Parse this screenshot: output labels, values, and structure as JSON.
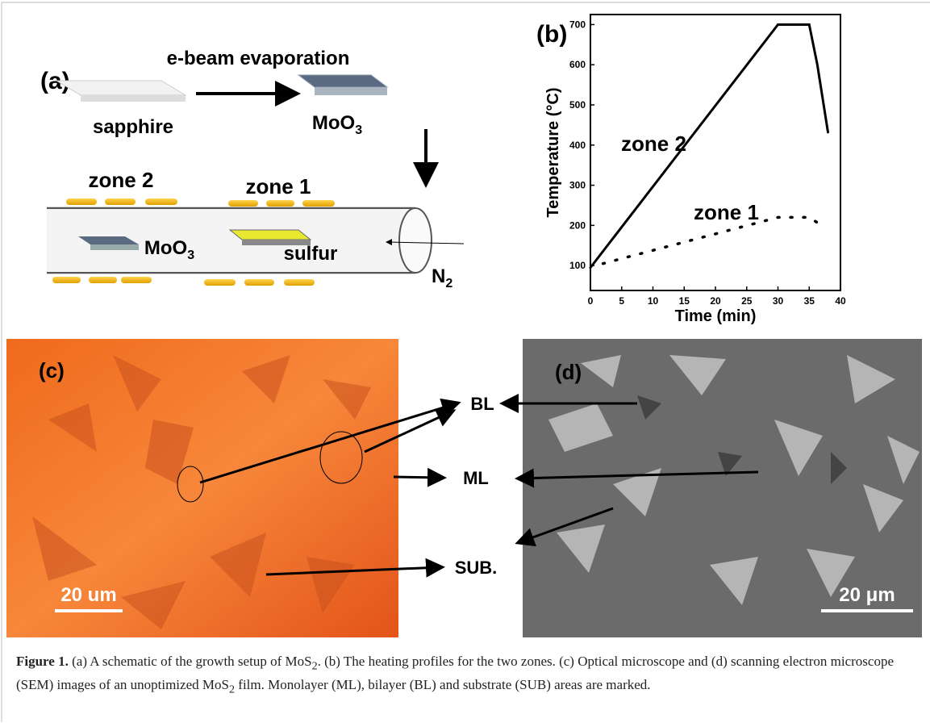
{
  "panel_a": {
    "label": "(a)",
    "process": "e-beam evaporation",
    "substrate": "sapphire",
    "film": {
      "text": "MoO",
      "sub": "3"
    },
    "zone_2": "zone 2",
    "zone_1": "zone 1",
    "tube_source": {
      "text": "MoO",
      "sub": "3"
    },
    "tube_sulfur": "sulfur",
    "gas": {
      "text": "N",
      "sub": "2"
    }
  },
  "chart_data": {
    "type": "line",
    "panel_label": "(b)",
    "x_label": "Time (min)",
    "y_label": "Temperature (°C)",
    "xlim": [
      0,
      40
    ],
    "xticks": [
      0,
      5,
      10,
      15,
      20,
      25,
      30,
      35,
      40
    ],
    "ylim": [
      38,
      725
    ],
    "yticks": [
      100,
      200,
      300,
      400,
      500,
      600,
      700
    ],
    "series": [
      {
        "name": "zone 2",
        "color": "#000000",
        "line_style": "solid",
        "x": [
          0,
          30,
          35,
          36.3,
          38
        ],
        "values": [
          95,
          700,
          700,
          600,
          432
        ]
      },
      {
        "name": "zone 1",
        "color": "#000000",
        "line_style": "dotted",
        "x": [
          2,
          30,
          35,
          37
        ],
        "values": [
          105,
          220,
          220,
          200
        ]
      }
    ]
  },
  "panel_c": {
    "label": "(c)",
    "scale_bar": "20 um"
  },
  "panel_d": {
    "label": "(d)",
    "scale_bar": "20 μm"
  },
  "markers": {
    "bilayer": "BL",
    "monolayer": "ML",
    "substrate": "SUB."
  },
  "caption": {
    "label": "Figure 1.",
    "segments": [
      {
        "text": " (a) A schematic of the growth setup of MoS"
      },
      {
        "sub": "2"
      },
      {
        "text": ". (b) The heating profiles for the two zones. (c) Optical microscope and (d) scanning electron microscope (SEM) images of an unoptimized MoS"
      },
      {
        "sub": "2"
      },
      {
        "text": " film. Monolayer (ML), bilayer (BL) and substrate (SUB) areas are marked."
      }
    ]
  }
}
